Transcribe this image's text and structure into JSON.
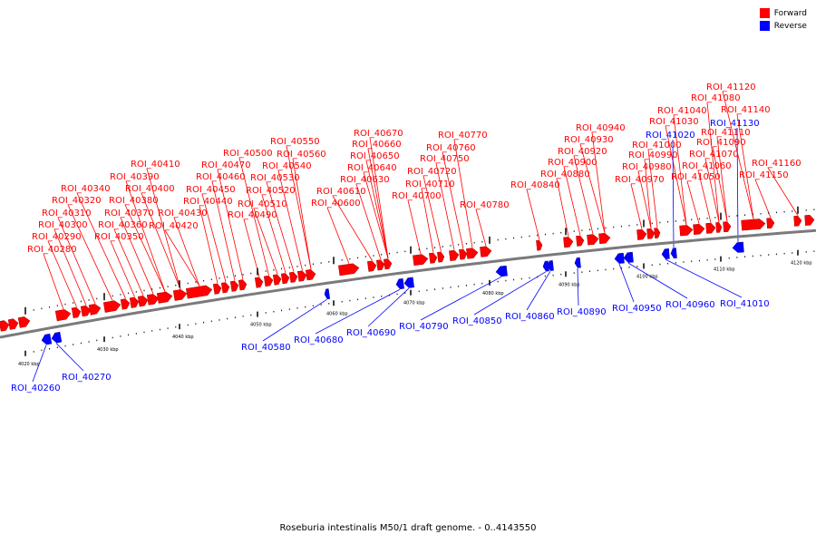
{
  "legend": [
    {
      "label": "Forward",
      "color": "#ff0000"
    },
    {
      "label": "Reverse",
      "color": "#0000ff"
    }
  ],
  "caption": "Roseburia intestinalis M50/1 draft genome. - 0..4143550",
  "colors": {
    "forward": "#ff0000",
    "reverse": "#0000ff",
    "leader_forward": "#ff0000",
    "leader_reverse": "#0000ff",
    "axis": "#7a7a7a"
  },
  "ticks": [
    "4020 kbp",
    "4030 kbp",
    "4040 kbp",
    "4050 kbp",
    "4060 kbp",
    "4070 kbp",
    "4080 kbp",
    "4090 kbp",
    "4100 kbp",
    "4110 kbp",
    "4120 kbp"
  ],
  "forward_labels": [
    "ROI_40280",
    "ROI_40290",
    "ROI_40300",
    "ROI_40310",
    "ROI_40320",
    "ROI_40340",
    "ROI_40350",
    "ROI_40360",
    "ROI_40370",
    "ROI_40380",
    "ROI_40390",
    "ROI_40400",
    "ROI_40410",
    "ROI_40420",
    "ROI_40430",
    "ROI_40440",
    "ROI_40450",
    "ROI_40460",
    "ROI_40470",
    "ROI_40490",
    "ROI_40500",
    "ROI_40510",
    "ROI_40520",
    "ROI_40530",
    "ROI_40540",
    "ROI_40550",
    "ROI_40560",
    "ROI_40600",
    "ROI_40610",
    "ROI_40630",
    "ROI_40640",
    "ROI_40650",
    "ROI_40660",
    "ROI_40670",
    "ROI_40700",
    "ROI_40710",
    "ROI_40720",
    "ROI_40750",
    "ROI_40760",
    "ROI_40770",
    "ROI_40780",
    "ROI_40840",
    "ROI_40880",
    "ROI_40900",
    "ROI_40920",
    "ROI_40930",
    "ROI_40940",
    "ROI_40970",
    "ROI_40980",
    "ROI_40990",
    "ROI_41000",
    "ROI_41030",
    "ROI_41040",
    "ROI_41050",
    "ROI_41060",
    "ROI_41070",
    "ROI_41080",
    "ROI_41090",
    "ROI_41110",
    "ROI_41120",
    "ROI_41140",
    "ROI_41150",
    "ROI_41160"
  ],
  "reverse_labels": [
    "ROI_40260",
    "ROI_40270",
    "ROI_40580",
    "ROI_40680",
    "ROI_40690",
    "ROI_40790",
    "ROI_40850",
    "ROI_40860",
    "ROI_40890",
    "ROI_40950",
    "ROI_40960",
    "ROI_41010",
    "ROI_41020",
    "ROI_41130"
  ]
}
